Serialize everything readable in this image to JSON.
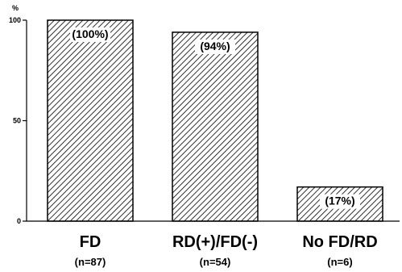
{
  "chart_data": {
    "type": "bar",
    "y_unit_label": "%",
    "categories": [
      "FD",
      "RD(+)/FD(-)",
      "No FD/RD"
    ],
    "n_labels": [
      "(n=87)",
      "(n=54)",
      "(n=6)"
    ],
    "values": [
      100,
      94,
      17
    ],
    "data_labels": [
      "(100%)",
      "(94%)",
      "(17%)"
    ],
    "yticks": [
      0,
      50,
      100
    ],
    "ylim": [
      0,
      100
    ],
    "grid": false,
    "legend": "none",
    "bar_fill": "hatched",
    "colors": {
      "ink": "#000000",
      "background": "#ffffff"
    }
  }
}
